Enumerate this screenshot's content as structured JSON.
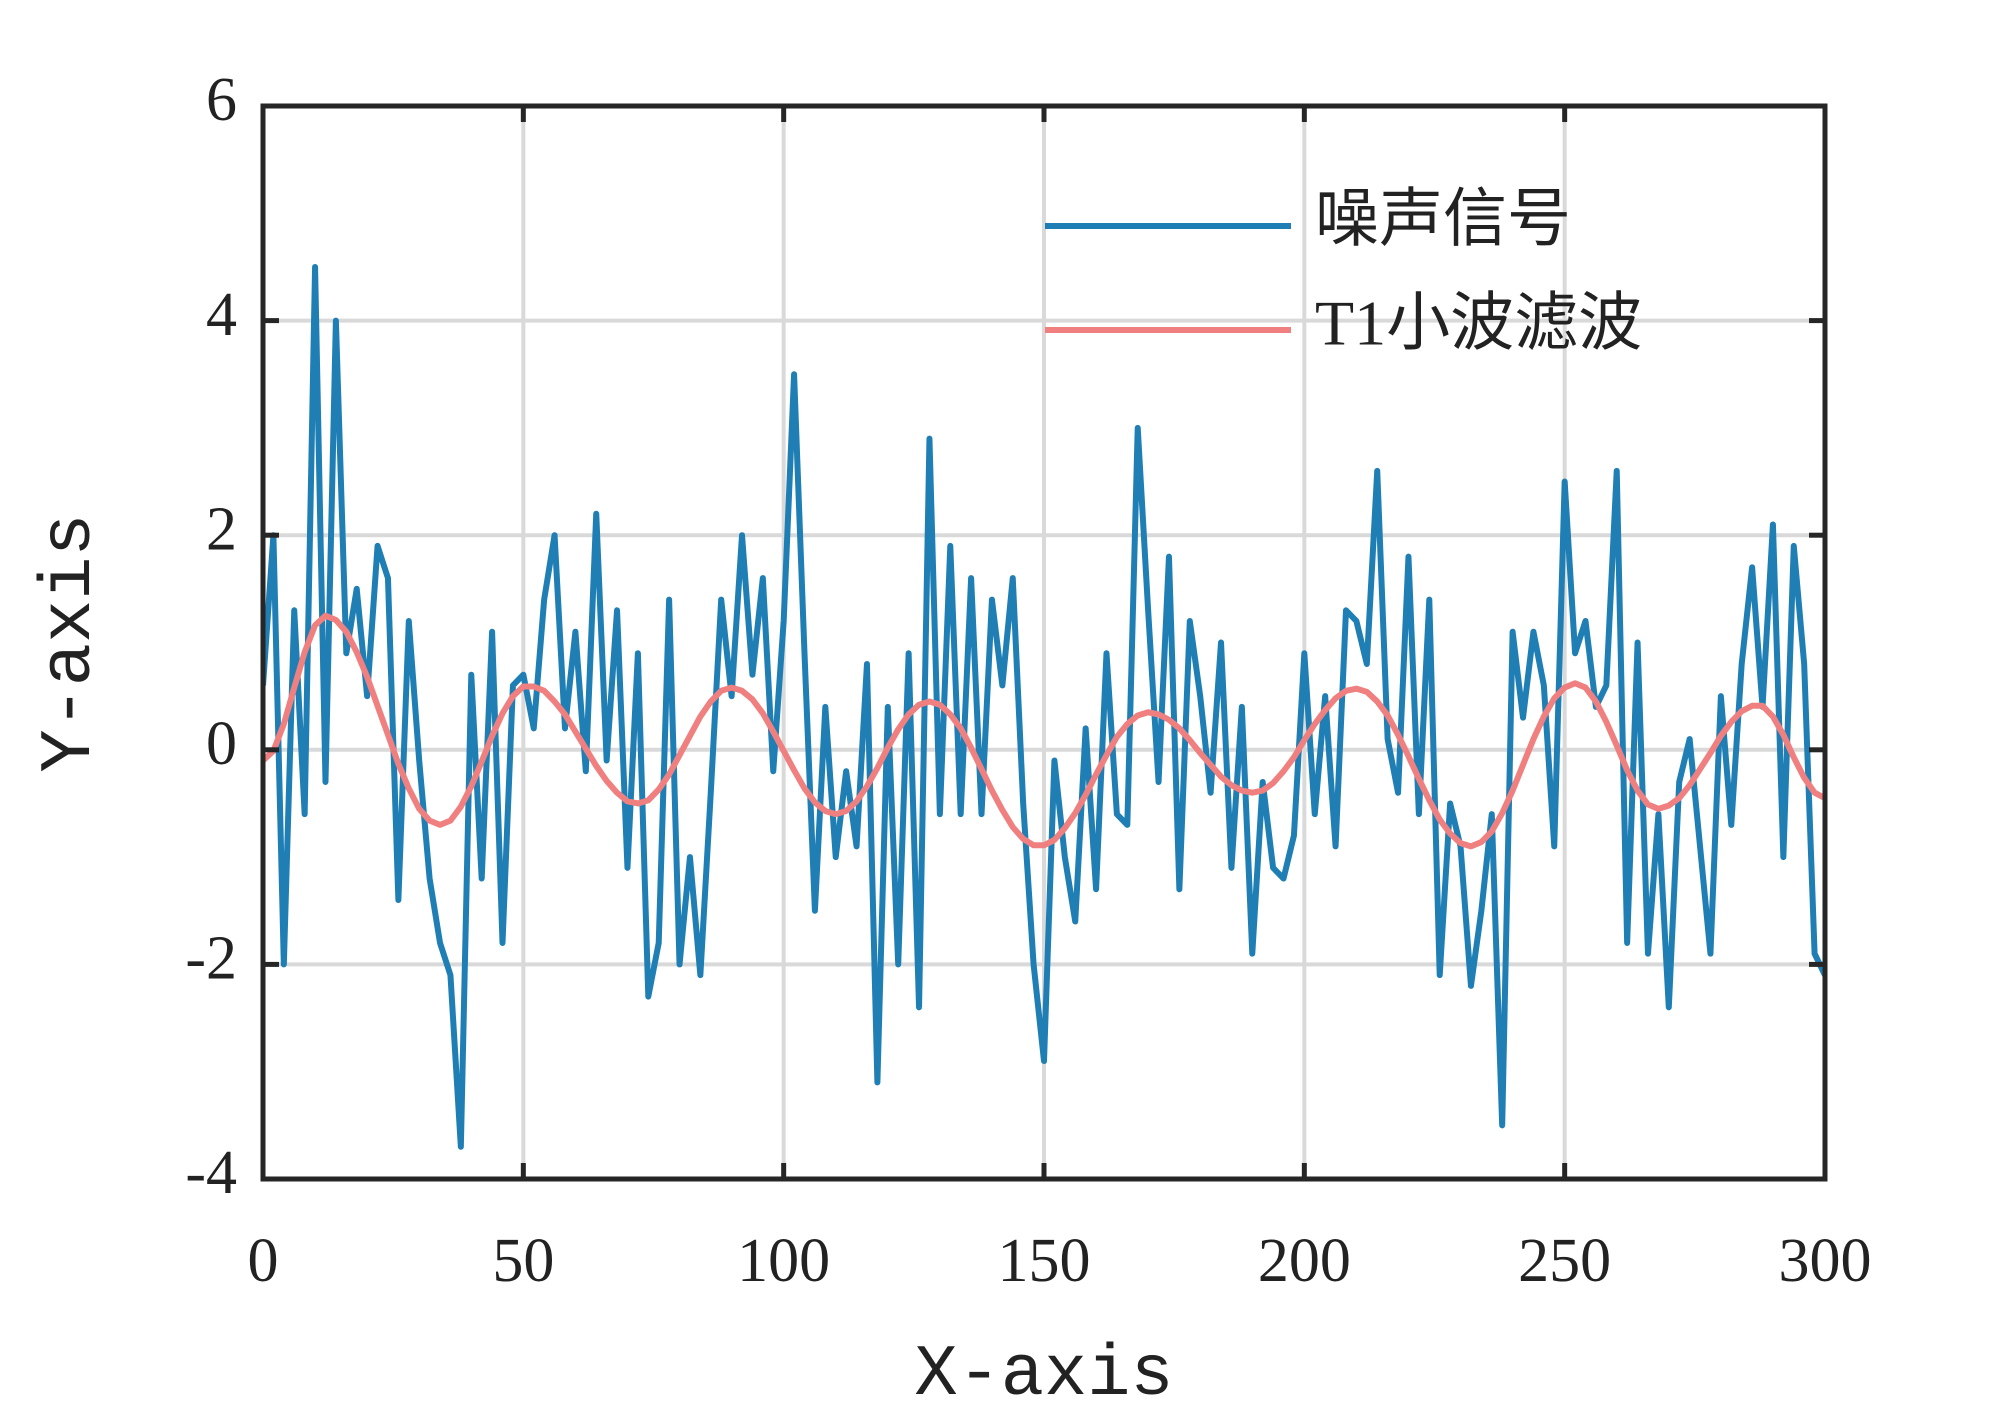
{
  "chart_data": {
    "type": "line",
    "xlabel": "X-axis",
    "ylabel": "Y-axis",
    "xlim": [
      0,
      300
    ],
    "ylim": [
      -4,
      6
    ],
    "xticks": [
      0,
      50,
      100,
      150,
      200,
      250,
      300
    ],
    "yticks": [
      -4,
      -2,
      0,
      2,
      4,
      6
    ],
    "grid": true,
    "legend": "upper right",
    "x": [
      0,
      2,
      4,
      6,
      8,
      10,
      12,
      14,
      16,
      18,
      20,
      22,
      24,
      26,
      28,
      30,
      32,
      34,
      36,
      38,
      40,
      42,
      44,
      46,
      48,
      50,
      52,
      54,
      56,
      58,
      60,
      62,
      64,
      66,
      68,
      70,
      72,
      74,
      76,
      78,
      80,
      82,
      84,
      86,
      88,
      90,
      92,
      94,
      96,
      98,
      100,
      102,
      104,
      106,
      108,
      110,
      112,
      114,
      116,
      118,
      120,
      122,
      124,
      126,
      128,
      130,
      132,
      134,
      136,
      138,
      140,
      142,
      144,
      146,
      148,
      150,
      152,
      154,
      156,
      158,
      160,
      162,
      164,
      166,
      168,
      170,
      172,
      174,
      176,
      178,
      180,
      182,
      184,
      186,
      188,
      190,
      192,
      194,
      196,
      198,
      200,
      202,
      204,
      206,
      208,
      210,
      212,
      214,
      216,
      218,
      220,
      222,
      224,
      226,
      228,
      230,
      232,
      234,
      236,
      238,
      240,
      242,
      244,
      246,
      248,
      250,
      252,
      254,
      256,
      258,
      260,
      262,
      264,
      266,
      268,
      270,
      272,
      274,
      276,
      278,
      280,
      282,
      284,
      286,
      288,
      290,
      292,
      294,
      296,
      298,
      300
    ],
    "series": [
      {
        "name": "噪声信号",
        "color": "#1f7fb5",
        "values": [
          0.6,
          2.0,
          -2.0,
          1.3,
          -0.6,
          4.5,
          -0.3,
          4.0,
          0.9,
          1.5,
          0.5,
          1.9,
          1.6,
          -1.4,
          1.2,
          -0.1,
          -1.2,
          -1.8,
          -2.1,
          -3.7,
          0.7,
          -1.2,
          1.1,
          -1.8,
          0.6,
          0.7,
          0.2,
          1.4,
          2.0,
          0.2,
          1.1,
          -0.2,
          2.2,
          -0.1,
          1.3,
          -1.1,
          0.9,
          -2.3,
          -1.8,
          1.4,
          -2.0,
          -1.0,
          -2.1,
          -0.4,
          1.4,
          0.5,
          2.0,
          0.7,
          1.6,
          -0.2,
          1.2,
          3.5,
          0.9,
          -1.5,
          0.4,
          -1.0,
          -0.2,
          -0.9,
          0.8,
          -3.1,
          0.4,
          -2.0,
          0.9,
          -2.4,
          2.9,
          -0.6,
          1.9,
          -0.6,
          1.6,
          -0.6,
          1.4,
          0.6,
          1.6,
          -0.5,
          -2.0,
          -2.9,
          -0.1,
          -1.0,
          -1.6,
          0.2,
          -1.3,
          0.9,
          -0.6,
          -0.7,
          3.0,
          1.3,
          -0.3,
          1.8,
          -1.3,
          1.2,
          0.5,
          -0.4,
          1.0,
          -1.1,
          0.4,
          -1.9,
          -0.3,
          -1.1,
          -1.2,
          -0.8,
          0.9,
          -0.6,
          0.5,
          -0.9,
          1.3,
          1.2,
          0.8,
          2.6,
          0.1,
          -0.4,
          1.8,
          -0.6,
          1.4,
          -2.1,
          -0.5,
          -0.9,
          -2.2,
          -1.5,
          -0.6,
          -3.5,
          1.1,
          0.3,
          1.1,
          0.6,
          -0.9,
          2.5,
          0.9,
          1.2,
          0.4,
          0.6,
          2.6,
          -1.8,
          1.0,
          -1.9,
          -0.6,
          -2.4,
          -0.3,
          0.1,
          -0.9,
          -1.9,
          0.5,
          -0.7,
          0.8,
          1.7,
          0.4,
          2.1,
          -1.0,
          1.9,
          0.8,
          -1.9,
          -2.1
        ]
      },
      {
        "name": "T1小波滤波",
        "color": "#f08080",
        "values": [
          -0.1,
          -0.01,
          0.24,
          0.58,
          0.91,
          1.16,
          1.25,
          1.21,
          1.1,
          0.91,
          0.68,
          0.41,
          0.14,
          -0.13,
          -0.36,
          -0.55,
          -0.66,
          -0.7,
          -0.66,
          -0.53,
          -0.34,
          -0.11,
          0.13,
          0.34,
          0.5,
          0.59,
          0.59,
          0.55,
          0.45,
          0.33,
          0.17,
          0.01,
          -0.15,
          -0.29,
          -0.4,
          -0.48,
          -0.5,
          -0.47,
          -0.37,
          -0.23,
          -0.05,
          0.13,
          0.31,
          0.45,
          0.55,
          0.58,
          0.55,
          0.47,
          0.34,
          0.17,
          -0.01,
          -0.19,
          -0.36,
          -0.49,
          -0.57,
          -0.6,
          -0.57,
          -0.48,
          -0.34,
          -0.17,
          0.02,
          0.19,
          0.33,
          0.42,
          0.45,
          0.42,
          0.33,
          0.2,
          0.02,
          -0.18,
          -0.38,
          -0.56,
          -0.72,
          -0.83,
          -0.89,
          -0.89,
          -0.84,
          -0.73,
          -0.59,
          -0.42,
          -0.23,
          -0.05,
          0.12,
          0.24,
          0.32,
          0.35,
          0.33,
          0.28,
          0.2,
          0.09,
          -0.03,
          -0.14,
          -0.25,
          -0.33,
          -0.38,
          -0.4,
          -0.38,
          -0.31,
          -0.2,
          -0.07,
          0.09,
          0.24,
          0.37,
          0.48,
          0.55,
          0.57,
          0.54,
          0.45,
          0.32,
          0.14,
          -0.06,
          -0.27,
          -0.47,
          -0.65,
          -0.78,
          -0.87,
          -0.9,
          -0.86,
          -0.76,
          -0.59,
          -0.38,
          -0.14,
          0.1,
          0.31,
          0.48,
          0.58,
          0.62,
          0.58,
          0.45,
          0.26,
          0.04,
          -0.19,
          -0.38,
          -0.51,
          -0.55,
          -0.52,
          -0.45,
          -0.33,
          -0.18,
          -0.03,
          0.13,
          0.26,
          0.36,
          0.41,
          0.41,
          0.31,
          0.14,
          -0.07,
          -0.26,
          -0.4,
          -0.45
        ]
      }
    ]
  }
}
